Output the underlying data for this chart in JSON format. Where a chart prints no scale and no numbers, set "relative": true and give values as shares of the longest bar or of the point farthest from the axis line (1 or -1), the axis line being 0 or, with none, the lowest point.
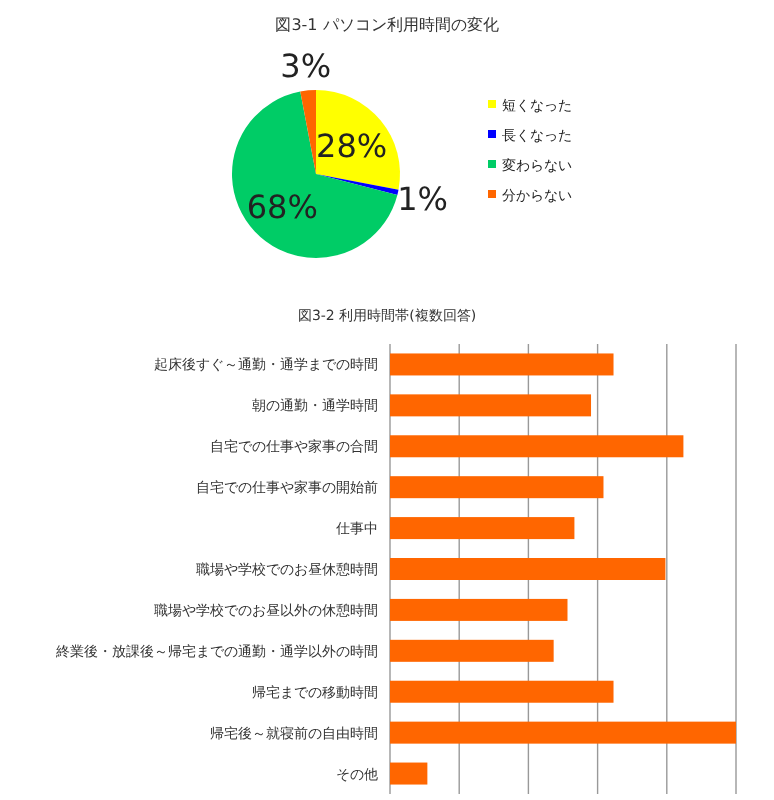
{
  "chart_data": [
    {
      "type": "pie",
      "title": "図3-1 パソコン利用時間の変化",
      "categories": [
        "短くなった",
        "長くなった",
        "変わらない",
        "分からない"
      ],
      "values": [
        28,
        1,
        68,
        3
      ],
      "colors": [
        "#ffff00",
        "#0000ff",
        "#00cc66",
        "#ff6600"
      ],
      "value_labels": [
        "28%",
        "1%",
        "68%",
        "3%"
      ],
      "legend": "right"
    },
    {
      "type": "bar",
      "orientation": "horizontal",
      "relative": true,
      "title": "図3-2 利用時間帯(複数回答)",
      "categories": [
        "起床後すぐ～通勤・通学までの時間",
        "朝の通勤・通学時間",
        "自宅での仕事や家事の合間",
        "自宅での仕事や家事の開始前",
        "仕事中",
        "職場や学校でのお昼休憩時間",
        "職場や学校でのお昼以外の休憩時間",
        "終業後・放課後～帰宅までの通勤・通学以外の時間",
        "帰宅までの移動時間",
        "帰宅後～就寝前の自由時間",
        "その他"
      ],
      "values": [
        0.646,
        0.581,
        0.848,
        0.617,
        0.533,
        0.796,
        0.513,
        0.473,
        0.646,
        1.0,
        0.108
      ],
      "color": "#ff6600",
      "grid": "x"
    }
  ]
}
